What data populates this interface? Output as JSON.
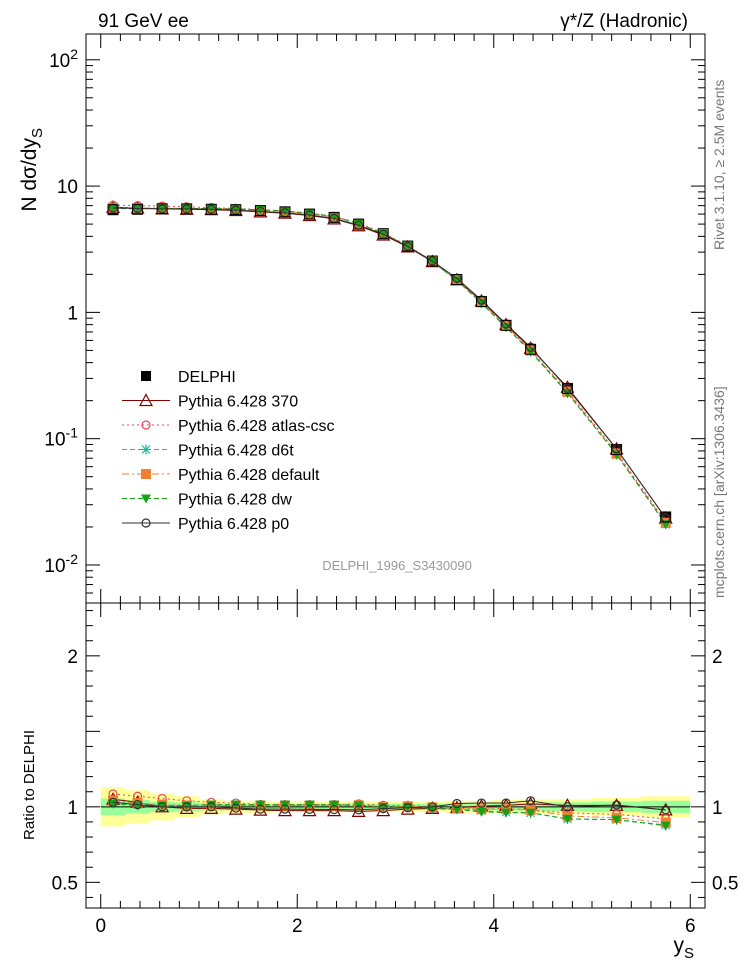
{
  "header": {
    "left": "91 GeV ee",
    "right": "γ*/Z (Hadronic)"
  },
  "side_labels": {
    "rivet": "Rivet 3.1.10, ≥ 2.5M events",
    "mcplots": "mcplots.cern.ch [arXiv:1306.3436]"
  },
  "watermark": "DELPHI_1996_S3430090",
  "chart_data": [
    {
      "type": "scatter",
      "panel": "main",
      "ylabel": "N dσ/dy_S",
      "xlabel": "y_S",
      "yscale": "log",
      "xlim": [
        -0.15,
        6.15
      ],
      "ylim": [
        0.005,
        160
      ],
      "y_tick_labels": [
        "10^-2",
        "10^-1",
        "1",
        "10",
        "10^2"
      ],
      "x_tick_labels": [
        "0",
        "2",
        "4",
        "6"
      ],
      "x": [
        0.125,
        0.375,
        0.625,
        0.875,
        1.125,
        1.375,
        1.625,
        1.875,
        2.125,
        2.375,
        2.625,
        2.875,
        3.125,
        3.375,
        3.625,
        3.875,
        4.125,
        4.375,
        4.75,
        5.25,
        5.75
      ],
      "legend_position": "left-middle",
      "series": [
        {
          "name": "DELPHI",
          "color": "#000000",
          "marker": "filled-square",
          "line": "none",
          "values": [
            6.5,
            6.55,
            6.6,
            6.6,
            6.55,
            6.5,
            6.4,
            6.25,
            6.0,
            5.65,
            5.0,
            4.2,
            3.35,
            2.55,
            1.82,
            1.22,
            0.79,
            0.51,
            0.25,
            0.082,
            0.024
          ]
        },
        {
          "name": "Pythia 6.428 370",
          "color": "#800000",
          "marker": "open-triangle",
          "line": "solid",
          "values": [
            6.8,
            6.7,
            6.6,
            6.55,
            6.5,
            6.4,
            6.25,
            6.1,
            5.85,
            5.5,
            4.85,
            4.1,
            3.3,
            2.52,
            1.81,
            1.23,
            0.8,
            0.52,
            0.255,
            0.083,
            0.0235
          ]
        },
        {
          "name": "Pythia 6.428 atlas-csc",
          "color": "#e8485a",
          "marker": "open-circle",
          "line": "dotted",
          "values": [
            7.05,
            7.0,
            6.95,
            6.85,
            6.75,
            6.65,
            6.5,
            6.35,
            6.1,
            5.75,
            5.1,
            4.25,
            3.38,
            2.55,
            1.8,
            1.2,
            0.79,
            0.5,
            0.24,
            0.078,
            0.022
          ]
        },
        {
          "name": "Pythia 6.428 d6t",
          "color": "#20b8a0",
          "marker": "asterisk",
          "line": "dashed",
          "values": [
            6.7,
            6.65,
            6.65,
            6.6,
            6.6,
            6.55,
            6.45,
            6.3,
            6.05,
            5.7,
            5.05,
            4.2,
            3.35,
            2.53,
            1.8,
            1.19,
            0.77,
            0.49,
            0.23,
            0.075,
            0.021
          ]
        },
        {
          "name": "Pythia 6.428 default",
          "color": "#f08030",
          "marker": "filled-square",
          "line": "dashdot",
          "values": [
            6.75,
            6.7,
            6.7,
            6.65,
            6.6,
            6.55,
            6.45,
            6.3,
            6.05,
            5.7,
            5.05,
            4.2,
            3.36,
            2.54,
            1.81,
            1.2,
            0.78,
            0.5,
            0.235,
            0.076,
            0.0215
          ]
        },
        {
          "name": "Pythia 6.428 dw",
          "color": "#18a018",
          "marker": "filled-down-triangle",
          "line": "dashed",
          "values": [
            6.65,
            6.6,
            6.65,
            6.65,
            6.65,
            6.6,
            6.5,
            6.35,
            6.1,
            5.75,
            5.05,
            4.2,
            3.35,
            2.52,
            1.79,
            1.18,
            0.76,
            0.49,
            0.23,
            0.075,
            0.021
          ]
        },
        {
          "name": "Pythia 6.428 p0",
          "color": "#303030",
          "marker": "open-circle",
          "line": "solid",
          "values": [
            6.7,
            6.65,
            6.6,
            6.6,
            6.55,
            6.45,
            6.3,
            6.15,
            5.9,
            5.55,
            4.9,
            4.15,
            3.33,
            2.55,
            1.86,
            1.25,
            0.81,
            0.53,
            0.25,
            0.083,
            0.0235
          ]
        }
      ]
    },
    {
      "type": "line",
      "panel": "ratio",
      "ylabel": "Ratio to DELPHI",
      "xlabel": "y_S",
      "xlim": [
        -0.15,
        6.15
      ],
      "ylim": [
        0.33,
        2.35
      ],
      "y_tick_labels": [
        "0.5",
        "1",
        "2"
      ],
      "x_tick_labels": [
        "0",
        "2",
        "4",
        "6"
      ],
      "x": [
        0.125,
        0.375,
        0.625,
        0.875,
        1.125,
        1.375,
        1.625,
        1.875,
        2.125,
        2.375,
        2.625,
        2.875,
        3.125,
        3.375,
        3.625,
        3.875,
        4.125,
        4.375,
        4.75,
        5.25,
        5.75
      ],
      "bin_edges": [
        0.0,
        0.25,
        0.5,
        0.75,
        1.0,
        1.25,
        1.5,
        1.75,
        2.0,
        2.25,
        2.5,
        2.75,
        3.0,
        3.25,
        3.5,
        3.75,
        4.0,
        4.25,
        4.5,
        5.0,
        5.5,
        6.0
      ],
      "band_outer": [
        0.13,
        0.11,
        0.09,
        0.07,
        0.05,
        0.04,
        0.04,
        0.035,
        0.035,
        0.035,
        0.035,
        0.035,
        0.035,
        0.035,
        0.04,
        0.04,
        0.045,
        0.05,
        0.05,
        0.06,
        0.07
      ],
      "band_inner": [
        0.055,
        0.045,
        0.035,
        0.03,
        0.025,
        0.02,
        0.02,
        0.02,
        0.02,
        0.02,
        0.02,
        0.02,
        0.02,
        0.02,
        0.02,
        0.02,
        0.025,
        0.025,
        0.03,
        0.035,
        0.04
      ],
      "series": [
        {
          "name": "Pythia 6.428 370",
          "color": "#800000",
          "marker": "open-triangle",
          "line": "solid",
          "values": [
            1.05,
            1.03,
            1.0,
            0.99,
            0.99,
            0.985,
            0.978,
            0.975,
            0.975,
            0.975,
            0.97,
            0.975,
            0.985,
            0.99,
            0.995,
            1.005,
            1.01,
            1.02,
            1.01,
            1.01,
            0.98
          ]
        },
        {
          "name": "Pythia 6.428 atlas-csc",
          "color": "#e8485a",
          "marker": "open-circle",
          "line": "dotted",
          "values": [
            1.085,
            1.07,
            1.055,
            1.04,
            1.03,
            1.025,
            1.016,
            1.015,
            1.015,
            1.015,
            1.02,
            1.01,
            1.01,
            1.0,
            0.99,
            0.985,
            0.99,
            0.98,
            0.96,
            0.95,
            0.92
          ]
        },
        {
          "name": "Pythia 6.428 d6t",
          "color": "#20b8a0",
          "marker": "asterisk",
          "line": "dashed",
          "values": [
            1.03,
            1.015,
            1.01,
            1.0,
            1.005,
            1.01,
            1.01,
            1.008,
            1.008,
            1.008,
            1.01,
            1.0,
            1.0,
            0.99,
            0.985,
            0.975,
            0.965,
            0.96,
            0.92,
            0.915,
            0.88
          ]
        },
        {
          "name": "Pythia 6.428 default",
          "color": "#f08030",
          "marker": "filled-square",
          "line": "dashdot",
          "values": [
            1.04,
            1.025,
            1.015,
            1.008,
            1.008,
            1.008,
            1.008,
            1.008,
            1.008,
            1.008,
            1.01,
            1.0,
            1.003,
            0.996,
            0.994,
            0.984,
            0.987,
            0.98,
            0.94,
            0.927,
            0.896
          ]
        },
        {
          "name": "Pythia 6.428 dw",
          "color": "#18a018",
          "marker": "filled-down-triangle",
          "line": "dashed",
          "values": [
            1.02,
            1.008,
            1.008,
            1.008,
            1.015,
            1.015,
            1.015,
            1.015,
            1.015,
            1.015,
            1.01,
            1.0,
            1.0,
            0.988,
            0.983,
            0.967,
            0.962,
            0.961,
            0.92,
            0.915,
            0.875
          ]
        },
        {
          "name": "Pythia 6.428 p0",
          "color": "#303030",
          "marker": "open-circle",
          "line": "solid",
          "values": [
            1.03,
            1.015,
            1.0,
            1.0,
            1.0,
            0.992,
            0.985,
            0.985,
            0.983,
            0.982,
            0.98,
            0.988,
            0.994,
            1.0,
            1.022,
            1.025,
            1.025,
            1.04,
            1.0,
            1.012,
            0.98
          ]
        }
      ]
    }
  ]
}
